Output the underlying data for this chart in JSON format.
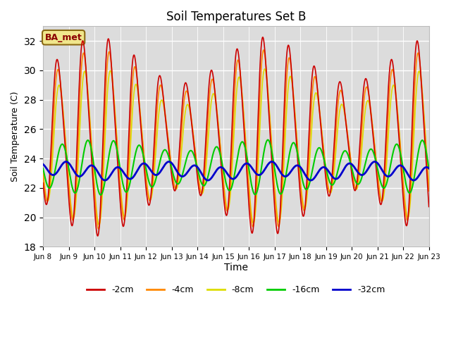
{
  "title": "Soil Temperatures Set B",
  "xlabel": "Time",
  "ylabel": "Soil Temperature (C)",
  "ylim": [
    18,
    33
  ],
  "yticks": [
    18,
    20,
    22,
    24,
    26,
    28,
    30,
    32
  ],
  "annotation": "BA_met",
  "bg_color": "#dcdcdc",
  "line_colors": {
    "-2cm": "#cc0000",
    "-4cm": "#ff8800",
    "-8cm": "#dddd00",
    "-16cm": "#00cc00",
    "-32cm": "#0000cc"
  },
  "line_widths": {
    "-2cm": 1.2,
    "-4cm": 1.2,
    "-8cm": 1.2,
    "-16cm": 1.5,
    "-32cm": 2.0
  },
  "x_tick_labels": [
    "Jun 8",
    "Jun 9",
    "Jun 10",
    "Jun 11",
    "Jun 12",
    "Jun 13",
    "Jun 14",
    "Jun 15",
    "Jun 16",
    "Jun 17",
    "Jun 18",
    "Jun 19",
    "Jun 20",
    "Jun 21",
    "Jun 22",
    "Jun 23"
  ],
  "x_tick_positions": [
    0,
    1,
    2,
    3,
    4,
    5,
    6,
    7,
    8,
    9,
    10,
    11,
    12,
    13,
    14,
    15
  ]
}
